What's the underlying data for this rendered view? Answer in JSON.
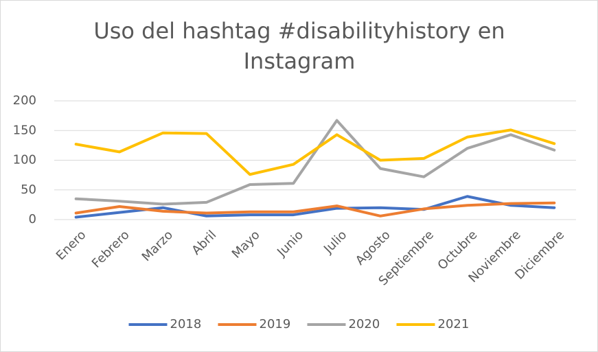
{
  "chart_data": {
    "type": "line",
    "title": "Uso del hashtag #disabilityhistory en Instagram",
    "categories": [
      "Enero",
      "Febrero",
      "Marzo",
      "Abril",
      "Mayo",
      "Junio",
      "Julio",
      "Agosto",
      "Septiembre",
      "Octubre",
      "Noviembre",
      "Diciembre"
    ],
    "series": [
      {
        "name": "2018",
        "color": "#4472c4",
        "values": [
          4,
          12,
          20,
          6,
          8,
          8,
          19,
          20,
          17,
          39,
          24,
          20
        ]
      },
      {
        "name": "2019",
        "color": "#ed7d31",
        "values": [
          11,
          22,
          14,
          11,
          13,
          13,
          23,
          6,
          18,
          24,
          27,
          28
        ]
      },
      {
        "name": "2020",
        "color": "#a5a5a5",
        "values": [
          35,
          31,
          26,
          29,
          59,
          61,
          167,
          86,
          72,
          120,
          143,
          117
        ]
      },
      {
        "name": "2021",
        "color": "#ffc000",
        "values": [
          127,
          114,
          146,
          145,
          76,
          93,
          143,
          100,
          103,
          139,
          151,
          128
        ]
      }
    ],
    "ylim": [
      0,
      200
    ],
    "yticks": [
      0,
      50,
      100,
      150,
      200
    ],
    "grid": true,
    "legend": "bottom"
  }
}
